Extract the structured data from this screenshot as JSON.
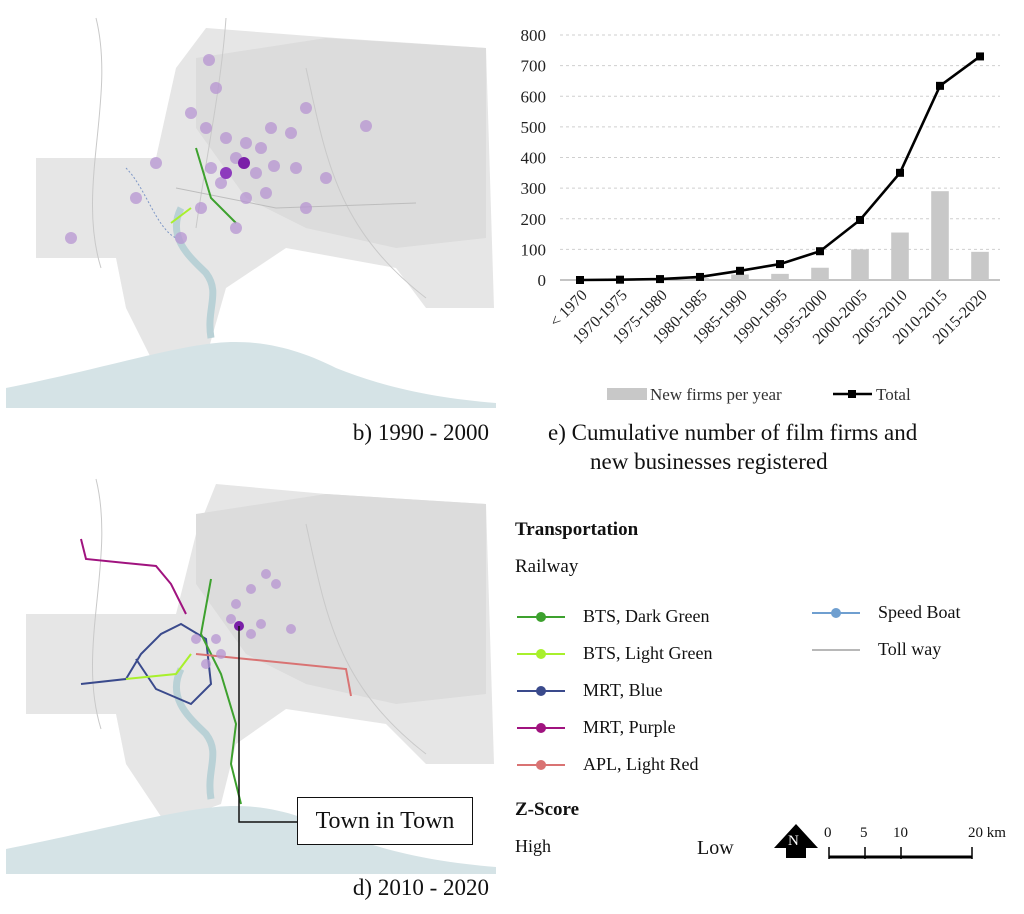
{
  "captions": {
    "map_b": "b) 1990 - 2000",
    "map_d": "d) 2010 - 2020",
    "chart_e_line1": "e) Cumulative number of film firms and",
    "chart_e_line2": "new businesses registered"
  },
  "callout": {
    "label": "Town in Town"
  },
  "legend": {
    "title": "Transportation",
    "subtitle": "Railway",
    "lines": [
      {
        "label": "BTS, Dark Green",
        "color": "#3da12e"
      },
      {
        "label": "BTS, Light Green",
        "color": "#a8f02c"
      },
      {
        "label": "MRT, Blue",
        "color": "#3a4a8c"
      },
      {
        "label": "MRT, Purple",
        "color": "#a0137f"
      },
      {
        "label": "APL, Light Red",
        "color": "#d97373"
      }
    ],
    "other": [
      {
        "label": "Speed Boat",
        "color": "#6f9fd0"
      },
      {
        "label": "Toll way",
        "color": "#b8b8b8"
      }
    ],
    "zscore": {
      "title": "Z-Score",
      "high": "High",
      "low": "Low"
    },
    "north": "N",
    "scale": {
      "ticks": [
        "0",
        "5",
        "10",
        "20 km"
      ]
    }
  },
  "chart_data": {
    "type": "bar",
    "categories": [
      "< 1970",
      "1970-1975",
      "1975-1980",
      "1980-1985",
      "1985-1990",
      "1990-1995",
      "1995-2000",
      "2000-2005",
      "2005-2010",
      "2010-2015",
      "2015-2020"
    ],
    "series": [
      {
        "name": "New firms per year",
        "type": "bar",
        "color": "#c8c8c8",
        "values": [
          0,
          1,
          2,
          6,
          18,
          20,
          40,
          100,
          155,
          290,
          92
        ]
      },
      {
        "name": "Total",
        "type": "line",
        "color": "#000000",
        "values": [
          0,
          1,
          3,
          10,
          30,
          52,
          94,
          196,
          350,
          634,
          730
        ]
      }
    ],
    "yticks": [
      "0",
      "100",
      "200",
      "300",
      "400",
      "500",
      "600",
      "700",
      "800"
    ],
    "ylim": [
      0,
      800
    ],
    "grid": true,
    "legend_position": "bottom"
  }
}
